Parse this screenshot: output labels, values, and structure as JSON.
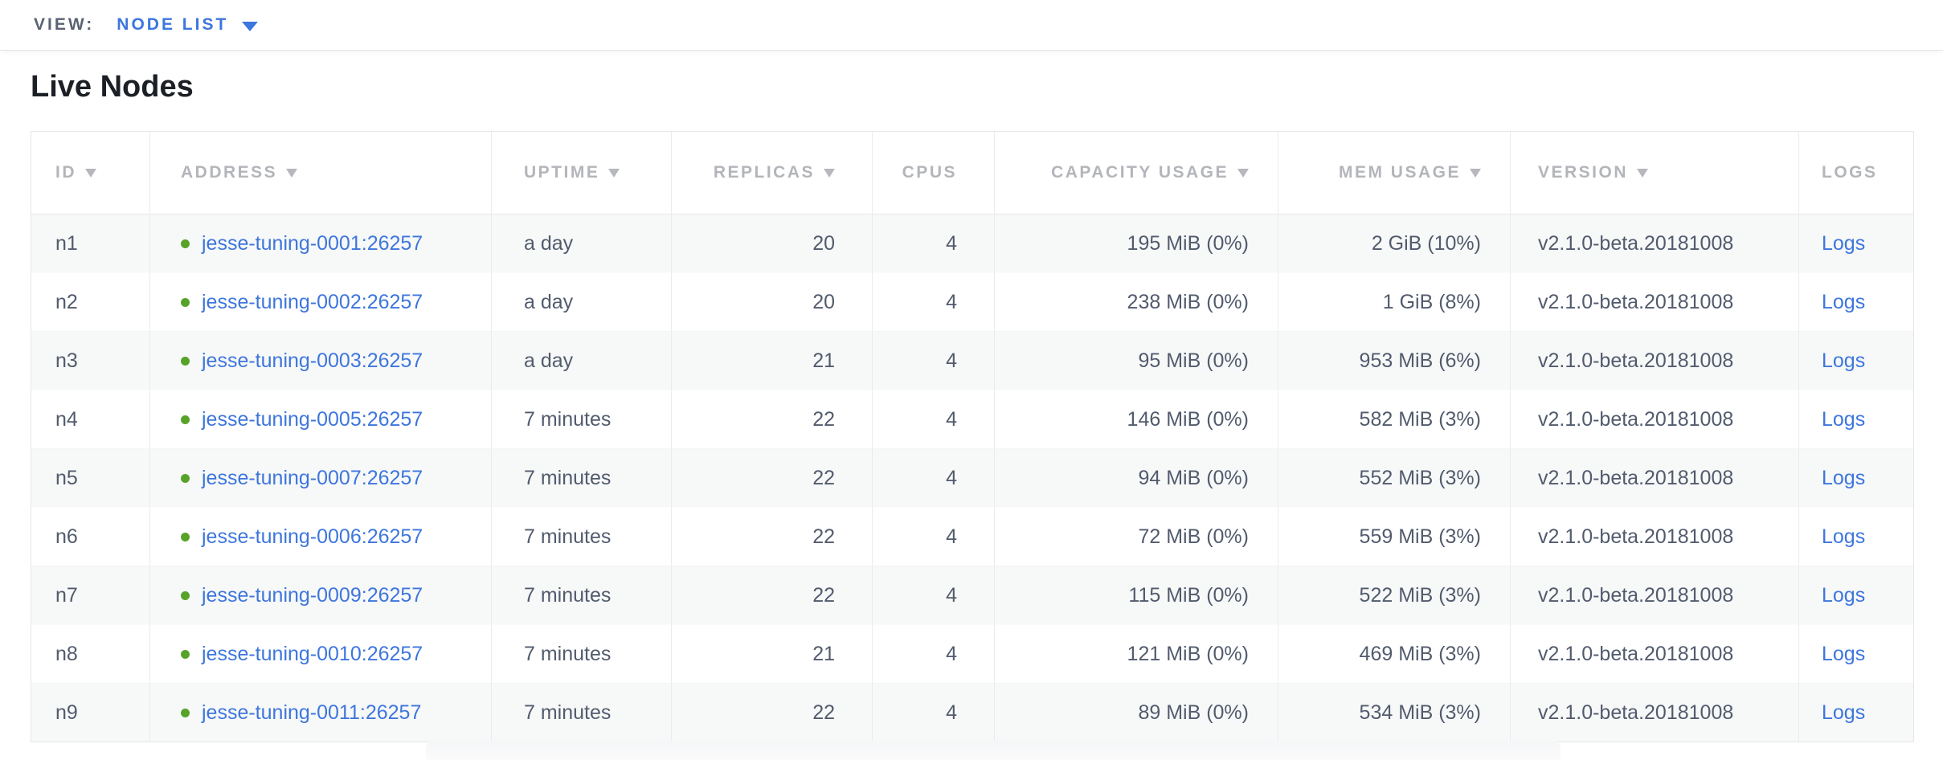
{
  "view_bar": {
    "label": "VIEW:",
    "selected": "NODE LIST"
  },
  "page": {
    "title": "Live Nodes"
  },
  "colors": {
    "link": "#3d76dd",
    "status_live": "#57a329",
    "header_text": "#b3b5ba",
    "data_text": "#525b6d",
    "row_alt": "#f7f8f8"
  },
  "table": {
    "columns": [
      {
        "key": "id",
        "label": "ID",
        "sort_arrow": true
      },
      {
        "key": "address",
        "label": "ADDRESS",
        "sort_arrow": true
      },
      {
        "key": "uptime",
        "label": "UPTIME",
        "sort_arrow": true
      },
      {
        "key": "replicas",
        "label": "REPLICAS",
        "sort_arrow": true
      },
      {
        "key": "cpus",
        "label": "CPUS",
        "sort_arrow": false
      },
      {
        "key": "capacity",
        "label": "CAPACITY USAGE",
        "sort_arrow": true
      },
      {
        "key": "mem",
        "label": "MEM USAGE",
        "sort_arrow": true
      },
      {
        "key": "version",
        "label": "VERSION",
        "sort_arrow": true
      },
      {
        "key": "logs",
        "label": "LOGS",
        "sort_arrow": false
      }
    ],
    "rows": [
      {
        "id": "n1",
        "status": "live",
        "address": "jesse-tuning-0001:26257",
        "uptime": "a day",
        "replicas": "20",
        "cpus": "4",
        "capacity": "195 MiB (0%)",
        "mem": "2 GiB (10%)",
        "version": "v2.1.0-beta.20181008",
        "logs": "Logs"
      },
      {
        "id": "n2",
        "status": "live",
        "address": "jesse-tuning-0002:26257",
        "uptime": "a day",
        "replicas": "20",
        "cpus": "4",
        "capacity": "238 MiB (0%)",
        "mem": "1 GiB (8%)",
        "version": "v2.1.0-beta.20181008",
        "logs": "Logs"
      },
      {
        "id": "n3",
        "status": "live",
        "address": "jesse-tuning-0003:26257",
        "uptime": "a day",
        "replicas": "21",
        "cpus": "4",
        "capacity": "95 MiB (0%)",
        "mem": "953 MiB (6%)",
        "version": "v2.1.0-beta.20181008",
        "logs": "Logs"
      },
      {
        "id": "n4",
        "status": "live",
        "address": "jesse-tuning-0005:26257",
        "uptime": "7 minutes",
        "replicas": "22",
        "cpus": "4",
        "capacity": "146 MiB (0%)",
        "mem": "582 MiB (3%)",
        "version": "v2.1.0-beta.20181008",
        "logs": "Logs"
      },
      {
        "id": "n5",
        "status": "live",
        "address": "jesse-tuning-0007:26257",
        "uptime": "7 minutes",
        "replicas": "22",
        "cpus": "4",
        "capacity": "94 MiB (0%)",
        "mem": "552 MiB (3%)",
        "version": "v2.1.0-beta.20181008",
        "logs": "Logs"
      },
      {
        "id": "n6",
        "status": "live",
        "address": "jesse-tuning-0006:26257",
        "uptime": "7 minutes",
        "replicas": "22",
        "cpus": "4",
        "capacity": "72 MiB (0%)",
        "mem": "559 MiB (3%)",
        "version": "v2.1.0-beta.20181008",
        "logs": "Logs"
      },
      {
        "id": "n7",
        "status": "live",
        "address": "jesse-tuning-0009:26257",
        "uptime": "7 minutes",
        "replicas": "22",
        "cpus": "4",
        "capacity": "115 MiB (0%)",
        "mem": "522 MiB (3%)",
        "version": "v2.1.0-beta.20181008",
        "logs": "Logs"
      },
      {
        "id": "n8",
        "status": "live",
        "address": "jesse-tuning-0010:26257",
        "uptime": "7 minutes",
        "replicas": "21",
        "cpus": "4",
        "capacity": "121 MiB (0%)",
        "mem": "469 MiB (3%)",
        "version": "v2.1.0-beta.20181008",
        "logs": "Logs"
      },
      {
        "id": "n9",
        "status": "live",
        "address": "jesse-tuning-0011:26257",
        "uptime": "7 minutes",
        "replicas": "22",
        "cpus": "4",
        "capacity": "89 MiB (0%)",
        "mem": "534 MiB (3%)",
        "version": "v2.1.0-beta.20181008",
        "logs": "Logs"
      }
    ]
  }
}
